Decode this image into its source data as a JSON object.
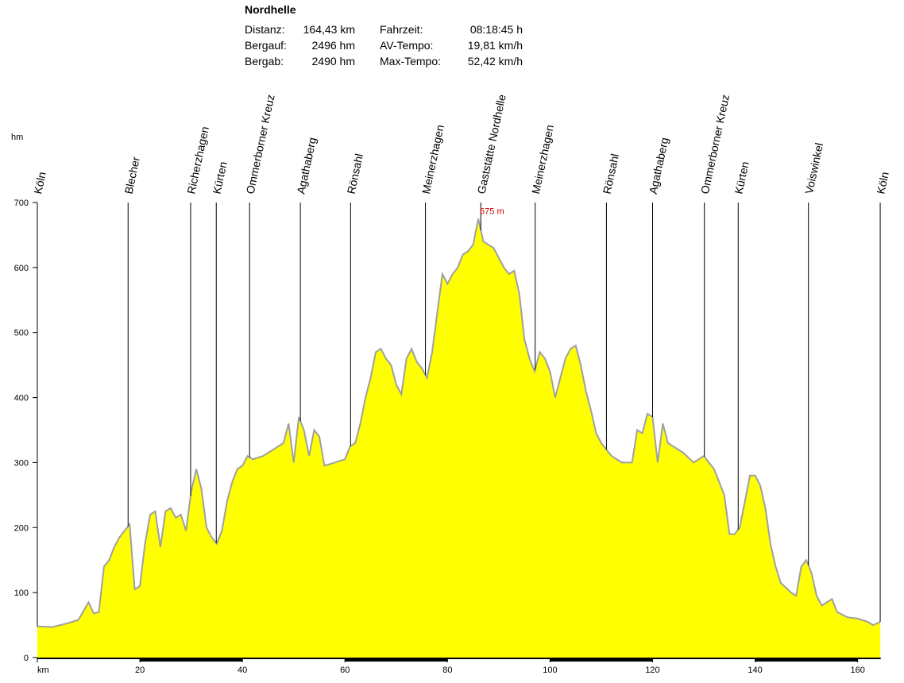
{
  "chart_data": {
    "type": "area",
    "title": "Nordhelle",
    "stats": [
      [
        {
          "label": "Distanz:",
          "value": "164,43 km"
        },
        {
          "label": "Fahrzeit:",
          "value": "08:18:45 h"
        }
      ],
      [
        {
          "label": "Bergauf:",
          "value": "2496 hm"
        },
        {
          "label": "AV-Tempo:",
          "value": "19,81 km/h"
        }
      ],
      [
        {
          "label": "Bergab:",
          "value": "2490 hm"
        },
        {
          "label": "Max-Tempo:",
          "value": "52,42 km/h"
        }
      ]
    ],
    "y_label": "hm",
    "xlim": [
      0,
      164.5
    ],
    "ylim": [
      0,
      700
    ],
    "xticks": [
      {
        "value": 0,
        "label": "km"
      },
      20,
      40,
      60,
      80,
      100,
      120,
      140,
      160
    ],
    "yticks": [
      0,
      100,
      200,
      300,
      400,
      500,
      600,
      700
    ],
    "color": "#ffff00",
    "line_color": "#a0a0a0",
    "annotation": {
      "label": "675 m",
      "x": 86,
      "value": 675
    },
    "waypoints": [
      {
        "name": "Köln",
        "km": 0
      },
      {
        "name": "Blecher",
        "km": 17.7
      },
      {
        "name": "Richerzhagen",
        "km": 29.9
      },
      {
        "name": "Kürten",
        "km": 34.9
      },
      {
        "name": "Ommerborner Kreuz",
        "km": 41.4
      },
      {
        "name": "Agathaberg",
        "km": 51.3
      },
      {
        "name": "Rönsahl",
        "km": 61.1
      },
      {
        "name": "Meinerzhagen",
        "km": 75.7
      },
      {
        "name": "Gaststätte Nordhelle",
        "km": 86.5
      },
      {
        "name": "Meinerzhagen",
        "km": 97.1
      },
      {
        "name": "Rönsahl",
        "km": 111
      },
      {
        "name": "Agathaberg",
        "km": 120
      },
      {
        "name": "Ommerborner Kreuz",
        "km": 130.1
      },
      {
        "name": "Kürten",
        "km": 136.7
      },
      {
        "name": "Voiswinkel",
        "km": 150.4
      },
      {
        "name": "Köln",
        "km": 164.4
      }
    ],
    "x": [
      0,
      3,
      6,
      8,
      10,
      11,
      12,
      13,
      14,
      15,
      16,
      17,
      18,
      19,
      20,
      21,
      22,
      23,
      24,
      25,
      26,
      27,
      28,
      29,
      30,
      31,
      32,
      33,
      34,
      35,
      36,
      37,
      38,
      39,
      40,
      41,
      42,
      44,
      46,
      48,
      49,
      50,
      51,
      52,
      53,
      54,
      55,
      56,
      58,
      60,
      61,
      62,
      63,
      64,
      65,
      66,
      67,
      68,
      69,
      70,
      71,
      72,
      73,
      74,
      75,
      76,
      77,
      78,
      79,
      80,
      81,
      82,
      83,
      84,
      85,
      86,
      87,
      88,
      89,
      90,
      91,
      92,
      93,
      94,
      95,
      96,
      97,
      98,
      99,
      100,
      101,
      102,
      103,
      104,
      105,
      106,
      107,
      108,
      109,
      110,
      111,
      112,
      114,
      116,
      117,
      118,
      119,
      120,
      121,
      122,
      123,
      124,
      126,
      128,
      130,
      131,
      132,
      133,
      134,
      135,
      136,
      137,
      138,
      139,
      140,
      141,
      142,
      143,
      144,
      145,
      147,
      148,
      149,
      150,
      151,
      152,
      153,
      154,
      155,
      156,
      158,
      160,
      162,
      163,
      164.4
    ],
    "values": [
      48,
      47,
      53,
      58,
      85,
      68,
      70,
      140,
      150,
      170,
      185,
      195,
      205,
      105,
      110,
      175,
      220,
      225,
      170,
      225,
      230,
      215,
      220,
      195,
      255,
      290,
      260,
      200,
      185,
      175,
      195,
      240,
      270,
      290,
      295,
      310,
      305,
      310,
      320,
      330,
      360,
      300,
      370,
      350,
      310,
      350,
      340,
      295,
      300,
      305,
      325,
      330,
      360,
      400,
      430,
      470,
      475,
      460,
      450,
      420,
      405,
      460,
      475,
      455,
      445,
      430,
      470,
      530,
      590,
      575,
      590,
      600,
      620,
      625,
      635,
      675,
      640,
      635,
      630,
      615,
      600,
      590,
      595,
      560,
      490,
      460,
      440,
      470,
      460,
      440,
      400,
      430,
      460,
      475,
      480,
      450,
      410,
      380,
      345,
      330,
      320,
      310,
      300,
      300,
      350,
      345,
      375,
      370,
      300,
      360,
      330,
      325,
      315,
      300,
      310,
      300,
      290,
      270,
      250,
      190,
      190,
      200,
      240,
      280,
      280,
      265,
      230,
      175,
      140,
      115,
      100,
      95,
      140,
      150,
      130,
      95,
      80,
      85,
      90,
      70,
      62,
      60,
      55,
      50,
      55
    ]
  }
}
